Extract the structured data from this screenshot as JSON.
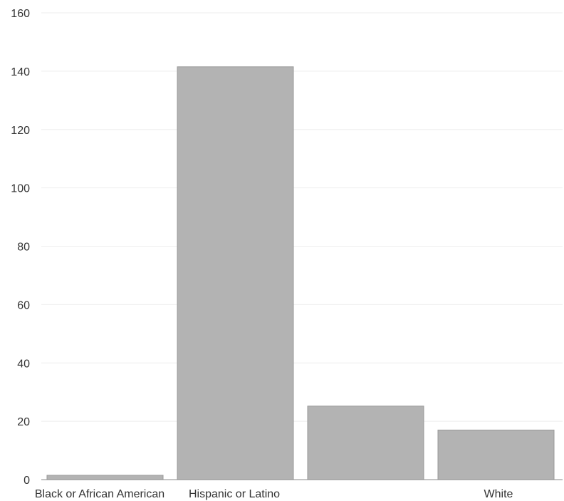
{
  "chart_data": {
    "type": "bar",
    "categories": [
      "Black or African American",
      "Hispanic or Latino",
      "",
      "White"
    ],
    "values": [
      1.5,
      141.5,
      25.2,
      17.0
    ],
    "ylim": [
      0,
      160
    ],
    "yticks": [
      0,
      20,
      40,
      60,
      80,
      100,
      120,
      140,
      160
    ],
    "grid": true,
    "colors": {
      "bar": "#b3b3b3",
      "bar_edge": "#9a9a9a",
      "grid": "#eeeeee"
    }
  }
}
